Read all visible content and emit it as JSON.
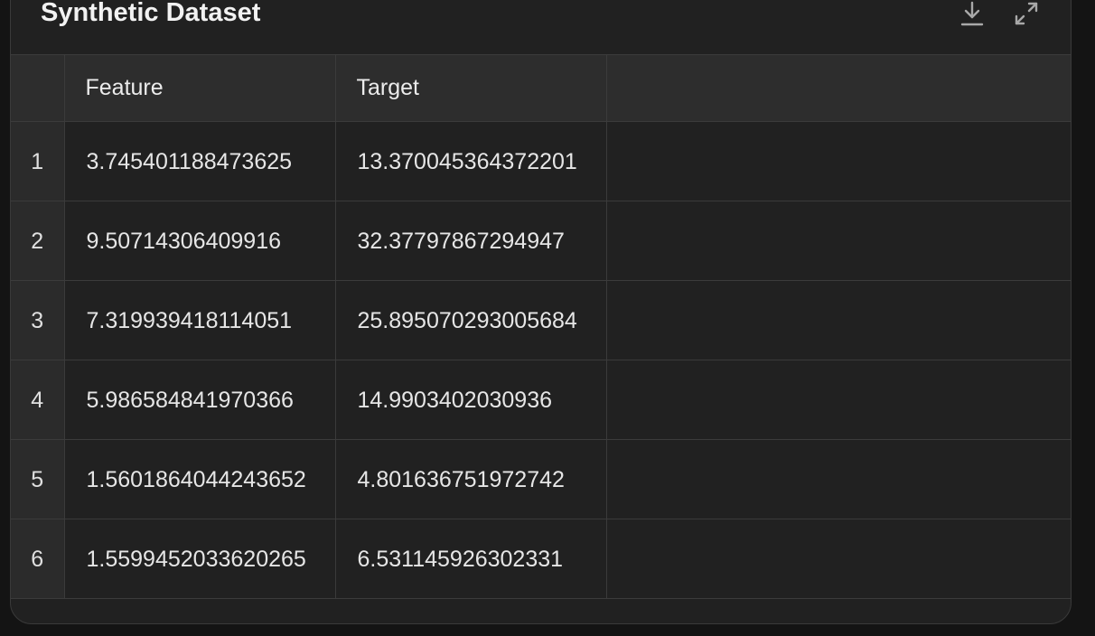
{
  "title": "Synthetic Dataset",
  "toolbar": {
    "download_icon": "download-icon",
    "expand_icon": "expand-icon"
  },
  "columns": [
    "",
    "Feature",
    "Target",
    ""
  ],
  "rows": [
    {
      "index": "1",
      "feature": "3.745401188473625",
      "target": "13.370045364372201"
    },
    {
      "index": "2",
      "feature": "9.50714306409916",
      "target": "32.37797867294947"
    },
    {
      "index": "3",
      "feature": "7.319939418114051",
      "target": "25.895070293005684"
    },
    {
      "index": "4",
      "feature": "5.986584841970366",
      "target": "14.9903402030936"
    },
    {
      "index": "5",
      "feature": "1.5601864044243652",
      "target": "4.801636751972742"
    },
    {
      "index": "6",
      "feature": "1.5599452033620265",
      "target": "6.531145926302331"
    }
  ],
  "colors": {
    "background": "#141414",
    "panel": "#212121",
    "header_row": "#2d2d2d",
    "index_cell": "#2b2b2b",
    "border": "#3b3b3b",
    "text": "#e6e6e6"
  }
}
